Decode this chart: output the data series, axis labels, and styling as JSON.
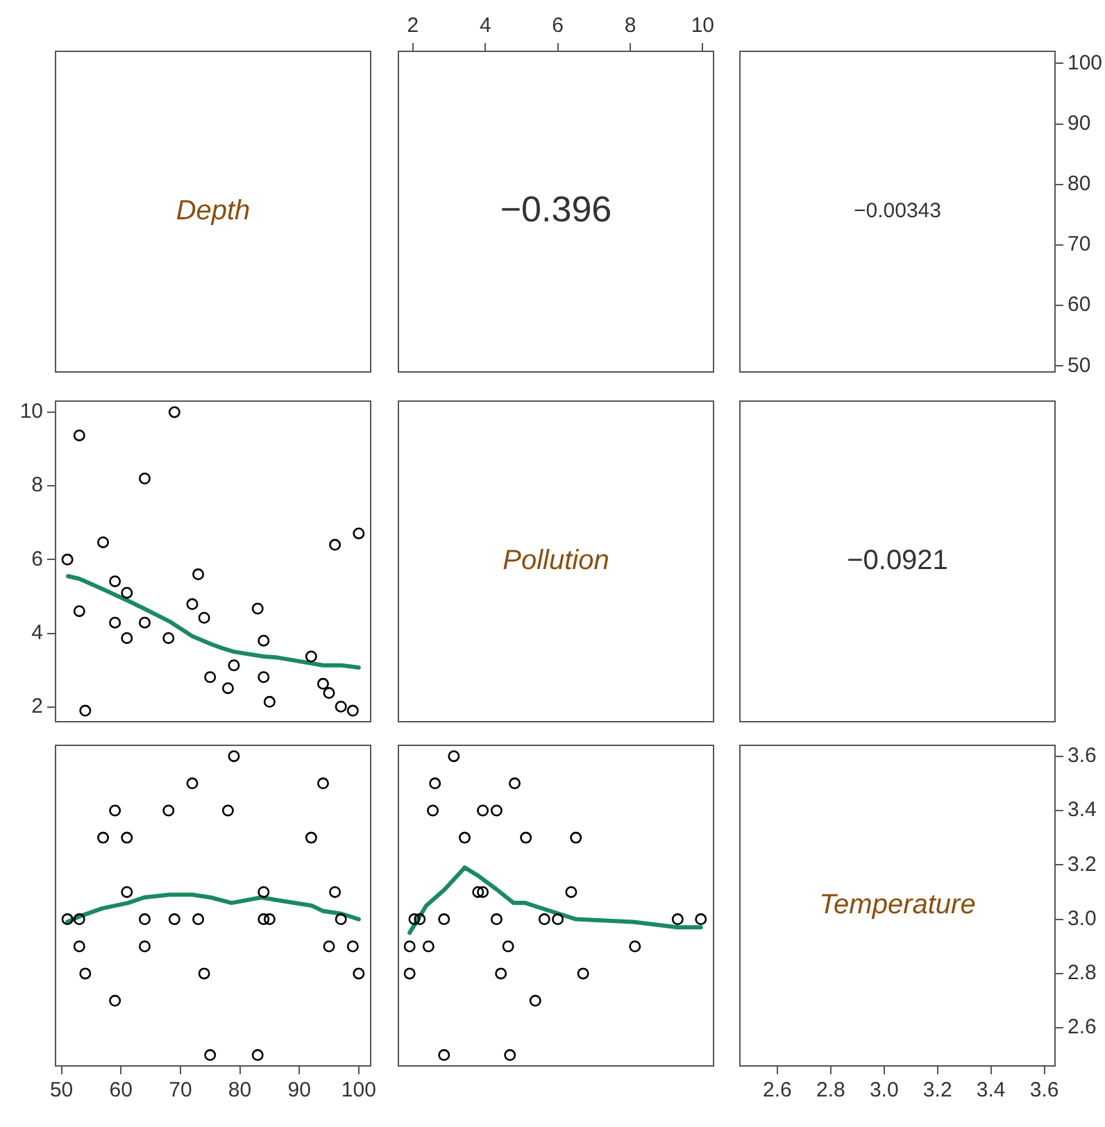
{
  "chart_data": [
    {
      "type": "other",
      "annotations": [
        "Depth"
      ]
    },
    {
      "type": "scatter",
      "annotations": [
        "−0.396"
      ],
      "xlim": [
        1.6,
        10.3
      ],
      "xticks": [
        2,
        4,
        6,
        8,
        10
      ],
      "ylim": [
        49,
        102
      ],
      "tick_labels": "x"
    },
    {
      "type": "scatter",
      "annotations": [
        "−0.00343"
      ],
      "xlim": [
        2.46,
        3.64
      ],
      "ylim": [
        49,
        102
      ],
      "yticks": [
        50,
        60,
        70,
        80,
        90,
        100
      ],
      "tick_labels": "y"
    },
    {
      "type": "scatter",
      "xlim": [
        49,
        102
      ],
      "ylim": [
        1.6,
        10.3
      ],
      "yticks": [
        2,
        4,
        6,
        8,
        10
      ],
      "tick_labels": "y",
      "marker": "circle",
      "series": [
        {
          "type": "scatter",
          "color": "#000000",
          "x": [
            51,
            53,
            53,
            54,
            57,
            59,
            59,
            61,
            61,
            64,
            64,
            68,
            69,
            72,
            73,
            74,
            75,
            78,
            79,
            83,
            84,
            84,
            85,
            92,
            94,
            95,
            96,
            97,
            99,
            100
          ],
          "values": [
            6.0,
            9.37,
            4.6,
            1.9,
            6.47,
            5.41,
            4.29,
            5.1,
            3.87,
            8.2,
            4.29,
            3.87,
            10.0,
            4.79,
            5.6,
            4.42,
            2.81,
            2.51,
            3.13,
            4.67,
            3.8,
            2.81,
            2.14,
            3.37,
            2.63,
            2.38,
            6.4,
            2.01,
            1.9,
            6.71
          ]
        },
        {
          "type": "line",
          "color": "#1b8a5e",
          "marker": "none",
          "x": [
            51.1,
            53,
            56.9,
            61.2,
            63.9,
            68.2,
            72,
            75.4,
            77,
            79,
            84,
            86.4,
            94,
            97.1,
            100
          ],
          "values": [
            5.55,
            5.48,
            5.2,
            4.88,
            4.67,
            4.32,
            3.92,
            3.69,
            3.6,
            3.5,
            3.37,
            3.34,
            3.13,
            3.13,
            3.07
          ]
        }
      ]
    },
    {
      "type": "other",
      "annotations": [
        "Pollution"
      ]
    },
    {
      "type": "other",
      "annotations": [
        "−0.0921"
      ]
    },
    {
      "type": "scatter",
      "xlim": [
        49,
        102
      ],
      "xticks": [
        50,
        60,
        70,
        80,
        90,
        100
      ],
      "ylim": [
        2.46,
        3.64
      ],
      "tick_labels": "x",
      "marker": "circle",
      "series": [
        {
          "type": "scatter",
          "color": "#000000",
          "x": [
            51,
            53,
            53,
            54,
            57,
            59,
            59,
            61,
            61,
            64,
            64,
            68,
            69,
            72,
            73,
            74,
            75,
            78,
            79,
            83,
            84,
            84,
            85,
            92,
            94,
            95,
            96,
            97,
            99,
            100
          ],
          "values": [
            3.0,
            3.0,
            2.9,
            2.8,
            3.3,
            3.4,
            2.7,
            3.3,
            3.1,
            3.0,
            2.9,
            3.4,
            3.0,
            3.5,
            3.0,
            2.8,
            2.5,
            3.4,
            3.6,
            2.5,
            3.1,
            3.0,
            3.0,
            3.3,
            3.5,
            2.9,
            3.1,
            3.0,
            2.9,
            2.8
          ]
        },
        {
          "type": "line",
          "color": "#1b8a5e",
          "marker": "none",
          "x": [
            51,
            53,
            56.9,
            61.2,
            63.9,
            68.2,
            72,
            75.1,
            78.6,
            83.6,
            86.4,
            92.1,
            94,
            97.1,
            100
          ],
          "values": [
            2.99,
            3.01,
            3.04,
            3.06,
            3.08,
            3.09,
            3.09,
            3.08,
            3.06,
            3.08,
            3.07,
            3.05,
            3.03,
            3.02,
            3.0
          ]
        }
      ]
    },
    {
      "type": "scatter",
      "xlim": [
        1.6,
        10.3
      ],
      "ylim": [
        2.46,
        3.64
      ],
      "tick_labels": false,
      "marker": "circle",
      "series": [
        {
          "type": "scatter",
          "color": "#000000",
          "x": [
            3.13,
            2.61,
            4.81,
            2.55,
            3.93,
            4.31,
            3.43,
            5.12,
            6.5,
            3.8,
            3.93,
            6.37,
            2.04,
            2.19,
            2.86,
            4.31,
            5.63,
            6.0,
            9.31,
            9.95,
            1.91,
            2.43,
            4.63,
            8.13,
            1.91,
            4.43,
            6.7,
            5.38,
            2.86,
            4.68
          ],
          "values": [
            3.6,
            3.5,
            3.5,
            3.4,
            3.4,
            3.4,
            3.3,
            3.3,
            3.3,
            3.1,
            3.1,
            3.1,
            3.0,
            3.0,
            3.0,
            3.0,
            3.0,
            3.0,
            3.0,
            3.0,
            2.9,
            2.9,
            2.9,
            2.9,
            2.8,
            2.8,
            2.8,
            2.7,
            2.5,
            2.5
          ]
        },
        {
          "type": "line",
          "color": "#1b8a5e",
          "marker": "none",
          "x": [
            1.91,
            2.37,
            2.88,
            3.43,
            3.8,
            4.31,
            4.78,
            5.1,
            6.5,
            8.08,
            9.31,
            9.95
          ],
          "values": [
            2.95,
            3.05,
            3.11,
            3.19,
            3.16,
            3.11,
            3.06,
            3.06,
            3.0,
            2.99,
            2.97,
            2.97
          ]
        }
      ]
    },
    {
      "type": "scatter",
      "annotations": [
        "Temperature"
      ],
      "xlim": [
        2.46,
        3.64
      ],
      "xticks": [
        2.6,
        2.8,
        {
          "value": 3,
          "label": "3.0"
        },
        3.2,
        3.4,
        3.6
      ],
      "ylim": [
        2.46,
        3.64
      ],
      "yticks": [
        2.6,
        2.8,
        {
          "value": 3,
          "label": "3.0"
        },
        3.2,
        3.4,
        3.6
      ]
    }
  ]
}
